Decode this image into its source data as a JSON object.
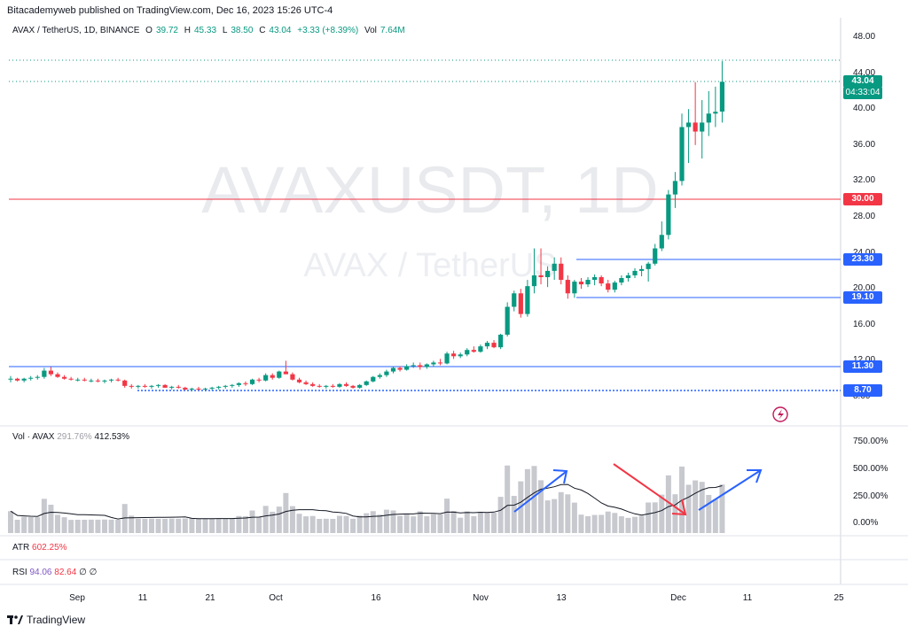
{
  "header": "Bitacademyweb published on TradingView.com, Dec 16, 2023 15:26 UTC-4",
  "legend": {
    "symbol": "AVAX / TetherUS, 1D, BINANCE",
    "o_label": "O",
    "o": "39.72",
    "h_label": "H",
    "h": "45.33",
    "l_label": "L",
    "l": "38.50",
    "c_label": "C",
    "c": "43.04",
    "change": "+3.33 (+8.39%)",
    "vol_label": "Vol",
    "vol": "7.64M"
  },
  "watermark": {
    "line1": "AVAXUSDT, 1D",
    "line2": "AVAX / TetherUS"
  },
  "price_axis": [
    "48.00",
    "44.00",
    "40.00",
    "36.00",
    "32.00",
    "28.00",
    "24.00",
    "20.00",
    "16.00",
    "12.00",
    "8.00"
  ],
  "price_tags": {
    "last": "43.04",
    "countdown": "04:33:04",
    "r30": "30.00",
    "r2330": "23.30",
    "r1910": "19.10",
    "r1130": "11.30",
    "r870": "8.70"
  },
  "vol_pane": {
    "label": "Vol · AVAX",
    "v1": "291.76%",
    "v2": "412.53%",
    "axis": [
      "750.00%",
      "500.00%",
      "250.00%",
      "0.00%"
    ]
  },
  "atr_pane": {
    "label": "ATR",
    "value": "602.25%"
  },
  "rsi_pane": {
    "label": "RSI",
    "v1": "94.06",
    "v2": "82.64",
    "v3": "∅",
    "v4": "∅"
  },
  "x_axis": [
    "Sep",
    "11",
    "21",
    "Oct",
    "16",
    "Nov",
    "13",
    "Dec",
    "11",
    "25"
  ],
  "footer": "TradingView",
  "colors": {
    "up": "#089981",
    "down": "#f23645",
    "blue": "#2962ff",
    "red": "#f23645"
  },
  "chart_data": {
    "type": "candlestick",
    "title": "AVAX / TetherUS, 1D, BINANCE",
    "ylim": [
      6.5,
      49.5
    ],
    "dates_start": "2023-08-23",
    "candles": [
      [
        9.9,
        10.3,
        9.6,
        10.0
      ],
      [
        10.0,
        10.1,
        9.7,
        9.8
      ],
      [
        9.8,
        10.1,
        9.6,
        10.0
      ],
      [
        10.0,
        10.3,
        9.8,
        10.1
      ],
      [
        10.1,
        10.4,
        9.9,
        10.2
      ],
      [
        10.2,
        11.2,
        10.0,
        10.9
      ],
      [
        10.9,
        11.3,
        10.3,
        10.5
      ],
      [
        10.5,
        10.7,
        10.1,
        10.2
      ],
      [
        10.2,
        10.4,
        9.9,
        10.0
      ],
      [
        10.0,
        10.2,
        9.8,
        9.9
      ],
      [
        9.9,
        10.1,
        9.7,
        9.9
      ],
      [
        9.9,
        10.1,
        9.7,
        9.8
      ],
      [
        9.8,
        10.0,
        9.6,
        9.8
      ],
      [
        9.8,
        10.0,
        9.6,
        9.7
      ],
      [
        9.7,
        9.9,
        9.5,
        9.8
      ],
      [
        9.8,
        10.0,
        9.6,
        9.9
      ],
      [
        9.9,
        10.1,
        9.7,
        9.8
      ],
      [
        9.8,
        9.9,
        9.0,
        9.2
      ],
      [
        9.2,
        9.4,
        8.9,
        9.1
      ],
      [
        9.1,
        9.3,
        8.9,
        9.2
      ],
      [
        9.2,
        9.4,
        9.0,
        9.1
      ],
      [
        9.1,
        9.3,
        8.9,
        9.2
      ],
      [
        9.2,
        9.4,
        9.0,
        9.3
      ],
      [
        9.3,
        9.4,
        9.0,
        9.0
      ],
      [
        9.0,
        9.2,
        8.8,
        9.1
      ],
      [
        9.1,
        9.3,
        8.9,
        9.0
      ],
      [
        9.0,
        9.1,
        8.7,
        8.8
      ],
      [
        8.8,
        9.0,
        8.6,
        8.9
      ],
      [
        8.9,
        9.1,
        8.7,
        8.8
      ],
      [
        8.8,
        9.0,
        8.6,
        8.9
      ],
      [
        8.9,
        9.1,
        8.7,
        9.0
      ],
      [
        9.0,
        9.2,
        8.8,
        9.1
      ],
      [
        9.1,
        9.3,
        8.9,
        9.2
      ],
      [
        9.2,
        9.4,
        9.0,
        9.3
      ],
      [
        9.3,
        9.6,
        9.1,
        9.5
      ],
      [
        9.5,
        9.7,
        9.2,
        9.4
      ],
      [
        9.4,
        10.0,
        9.3,
        9.9
      ],
      [
        9.9,
        10.1,
        9.6,
        9.8
      ],
      [
        9.8,
        10.6,
        9.7,
        10.4
      ],
      [
        10.4,
        10.6,
        9.9,
        10.1
      ],
      [
        10.1,
        10.9,
        10.0,
        10.8
      ],
      [
        10.8,
        12.0,
        10.5,
        10.5
      ],
      [
        10.5,
        10.7,
        9.8,
        9.9
      ],
      [
        9.9,
        10.1,
        9.5,
        9.6
      ],
      [
        9.6,
        9.8,
        9.3,
        9.4
      ],
      [
        9.4,
        9.6,
        9.1,
        9.2
      ],
      [
        9.2,
        9.4,
        9.0,
        9.1
      ],
      [
        9.1,
        9.3,
        8.9,
        9.2
      ],
      [
        9.2,
        9.4,
        9.0,
        9.1
      ],
      [
        9.1,
        9.5,
        9.0,
        9.4
      ],
      [
        9.4,
        9.6,
        9.1,
        9.2
      ],
      [
        9.2,
        9.3,
        8.9,
        9.0
      ],
      [
        9.0,
        9.4,
        8.9,
        9.3
      ],
      [
        9.3,
        9.8,
        9.2,
        9.7
      ],
      [
        9.7,
        10.3,
        9.6,
        10.2
      ],
      [
        10.2,
        10.6,
        10.0,
        10.4
      ],
      [
        10.4,
        11.0,
        10.2,
        10.8
      ],
      [
        10.8,
        11.4,
        10.6,
        11.2
      ],
      [
        11.2,
        11.4,
        10.8,
        11.0
      ],
      [
        11.0,
        11.6,
        10.9,
        11.4
      ],
      [
        11.4,
        11.8,
        11.2,
        11.5
      ],
      [
        11.5,
        11.8,
        11.0,
        11.3
      ],
      [
        11.3,
        11.7,
        11.1,
        11.6
      ],
      [
        11.6,
        12.0,
        11.3,
        11.8
      ],
      [
        11.8,
        12.2,
        11.5,
        11.7
      ],
      [
        11.7,
        13.0,
        11.6,
        12.8
      ],
      [
        12.8,
        13.1,
        12.2,
        12.5
      ],
      [
        12.5,
        12.9,
        12.3,
        12.7
      ],
      [
        12.7,
        13.4,
        12.5,
        13.2
      ],
      [
        13.2,
        13.6,
        12.9,
        13.0
      ],
      [
        13.0,
        13.8,
        12.9,
        13.6
      ],
      [
        13.6,
        14.2,
        13.3,
        14.0
      ],
      [
        14.0,
        14.3,
        13.4,
        13.5
      ],
      [
        13.5,
        15.0,
        13.3,
        14.9
      ],
      [
        14.9,
        18.5,
        14.7,
        18.0
      ],
      [
        18.0,
        19.8,
        17.5,
        19.5
      ],
      [
        19.5,
        20.0,
        16.8,
        17.2
      ],
      [
        17.2,
        21.0,
        16.9,
        20.3
      ],
      [
        20.3,
        24.5,
        19.5,
        21.5
      ],
      [
        21.5,
        24.5,
        20.5,
        21.3
      ],
      [
        21.3,
        22.5,
        20.2,
        22.0
      ],
      [
        22.0,
        23.5,
        21.0,
        22.8
      ],
      [
        22.8,
        23.5,
        20.5,
        21.0
      ],
      [
        21.0,
        21.5,
        18.9,
        19.5
      ],
      [
        19.5,
        21.0,
        19.0,
        20.8
      ],
      [
        20.8,
        21.2,
        20.0,
        20.5
      ],
      [
        20.5,
        21.3,
        20.2,
        21.0
      ],
      [
        21.0,
        21.6,
        20.4,
        21.3
      ],
      [
        21.3,
        21.5,
        20.3,
        20.6
      ],
      [
        20.6,
        21.0,
        19.6,
        19.9
      ],
      [
        19.9,
        20.9,
        19.6,
        20.7
      ],
      [
        20.7,
        21.5,
        20.4,
        21.2
      ],
      [
        21.2,
        21.8,
        20.8,
        21.5
      ],
      [
        21.5,
        22.3,
        21.2,
        22.0
      ],
      [
        22.0,
        22.6,
        21.4,
        22.2
      ],
      [
        22.2,
        23.0,
        20.8,
        22.8
      ],
      [
        22.8,
        25.0,
        22.6,
        24.5
      ],
      [
        24.5,
        27.5,
        24.2,
        26.0
      ],
      [
        26.0,
        31.0,
        25.5,
        30.5
      ],
      [
        30.5,
        33.0,
        29.0,
        32.0
      ],
      [
        32.0,
        39.5,
        31.5,
        38.0
      ],
      [
        38.0,
        40.0,
        34.0,
        38.5
      ],
      [
        38.5,
        43.0,
        36.0,
        37.5
      ],
      [
        37.5,
        41.0,
        34.5,
        38.5
      ],
      [
        38.5,
        42.0,
        37.0,
        39.5
      ],
      [
        39.5,
        42.5,
        38.0,
        39.7
      ],
      [
        39.72,
        45.33,
        38.5,
        43.04
      ]
    ]
  }
}
